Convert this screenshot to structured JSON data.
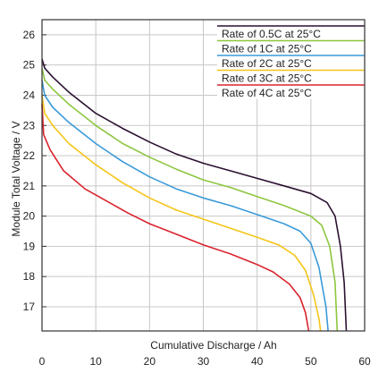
{
  "chart_data": {
    "type": "line",
    "title": "",
    "xlabel": "Cumulative Discharge / Ah",
    "ylabel": "Module Total Voltage / V",
    "xlim": [
      0,
      60
    ],
    "ylim": [
      16.2,
      26.5
    ],
    "xticks": [
      "0",
      "10",
      "20",
      "30",
      "40",
      "50",
      "60"
    ],
    "yticks": [
      "17",
      "18",
      "19",
      "20",
      "21",
      "22",
      "23",
      "24",
      "25",
      "26"
    ],
    "grid": true,
    "legend_position": "top-right",
    "series": [
      {
        "name": "Rate of 0.5C at 25°C",
        "color": "#2a1030",
        "points": [
          [
            0,
            25.2
          ],
          [
            0.5,
            24.9
          ],
          [
            2,
            24.6
          ],
          [
            5,
            24.1
          ],
          [
            10,
            23.4
          ],
          [
            15,
            22.9
          ],
          [
            20,
            22.45
          ],
          [
            25,
            22.05
          ],
          [
            30,
            21.75
          ],
          [
            35,
            21.5
          ],
          [
            40,
            21.25
          ],
          [
            45,
            21.0
          ],
          [
            50,
            20.75
          ],
          [
            53,
            20.45
          ],
          [
            54.5,
            20.0
          ],
          [
            55.5,
            19.0
          ],
          [
            56.2,
            17.8
          ],
          [
            56.6,
            16.2
          ]
        ]
      },
      {
        "name": "Rate of 1C at 25°C",
        "color": "#8dc63f",
        "points": [
          [
            0,
            24.9
          ],
          [
            0.5,
            24.5
          ],
          [
            2,
            24.2
          ],
          [
            5,
            23.7
          ],
          [
            10,
            23.0
          ],
          [
            15,
            22.4
          ],
          [
            20,
            21.95
          ],
          [
            25,
            21.55
          ],
          [
            30,
            21.2
          ],
          [
            35,
            20.95
          ],
          [
            40,
            20.65
          ],
          [
            45,
            20.35
          ],
          [
            50,
            20.0
          ],
          [
            52,
            19.7
          ],
          [
            53.5,
            19.0
          ],
          [
            54.5,
            17.8
          ],
          [
            54.9,
            16.2
          ]
        ]
      },
      {
        "name": "Rate of 2C at 25°C",
        "color": "#3a9ad9",
        "points": [
          [
            0,
            24.5
          ],
          [
            0.5,
            24.0
          ],
          [
            2,
            23.6
          ],
          [
            5,
            23.1
          ],
          [
            10,
            22.4
          ],
          [
            15,
            21.8
          ],
          [
            20,
            21.3
          ],
          [
            25,
            20.9
          ],
          [
            30,
            20.6
          ],
          [
            35,
            20.35
          ],
          [
            40,
            20.05
          ],
          [
            45,
            19.75
          ],
          [
            48,
            19.5
          ],
          [
            50,
            19.1
          ],
          [
            51.5,
            18.3
          ],
          [
            52.8,
            17.0
          ],
          [
            53.2,
            16.2
          ]
        ]
      },
      {
        "name": "Rate of 3C at 25°C",
        "color": "#f5c518",
        "points": [
          [
            0,
            24.0
          ],
          [
            0.5,
            23.4
          ],
          [
            2,
            23.0
          ],
          [
            5,
            22.4
          ],
          [
            10,
            21.7
          ],
          [
            15,
            21.1
          ],
          [
            20,
            20.6
          ],
          [
            25,
            20.2
          ],
          [
            30,
            19.9
          ],
          [
            35,
            19.6
          ],
          [
            40,
            19.3
          ],
          [
            44,
            19.05
          ],
          [
            47,
            18.7
          ],
          [
            49,
            18.2
          ],
          [
            50.5,
            17.4
          ],
          [
            51.5,
            16.6
          ],
          [
            51.8,
            16.2
          ]
        ]
      },
      {
        "name": "Rate of 4C at 25°C",
        "color": "#d9232e",
        "points": [
          [
            0,
            23.7
          ],
          [
            0.3,
            22.7
          ],
          [
            1.5,
            22.2
          ],
          [
            4,
            21.5
          ],
          [
            8,
            20.9
          ],
          [
            12,
            20.5
          ],
          [
            16,
            20.1
          ],
          [
            20,
            19.75
          ],
          [
            25,
            19.4
          ],
          [
            30,
            19.05
          ],
          [
            35,
            18.75
          ],
          [
            40,
            18.4
          ],
          [
            43,
            18.15
          ],
          [
            46,
            17.75
          ],
          [
            48,
            17.3
          ],
          [
            49,
            16.8
          ],
          [
            49.6,
            16.2
          ]
        ]
      }
    ]
  }
}
